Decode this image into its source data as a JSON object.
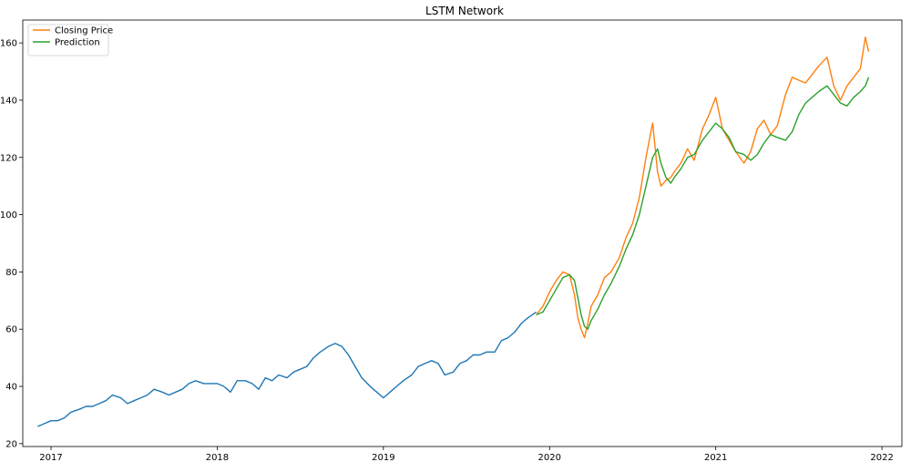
{
  "chart_data": {
    "type": "line",
    "title": "LSTM Network",
    "xlabel": "",
    "ylabel": "",
    "xlim": [
      2016.83,
      2022.12
    ],
    "ylim": [
      19,
      168
    ],
    "x_ticks": [
      2017,
      2018,
      2019,
      2020,
      2021,
      2022
    ],
    "y_ticks": [
      20,
      40,
      60,
      80,
      100,
      120,
      140,
      160
    ],
    "grid": false,
    "legend": {
      "placement": "top-left"
    },
    "series": [
      {
        "name": "",
        "color": "#1f77b4",
        "x": [
          2016.92,
          2016.96,
          2017.0,
          2017.04,
          2017.08,
          2017.12,
          2017.17,
          2017.21,
          2017.25,
          2017.29,
          2017.33,
          2017.37,
          2017.42,
          2017.46,
          2017.5,
          2017.54,
          2017.58,
          2017.62,
          2017.67,
          2017.71,
          2017.75,
          2017.79,
          2017.83,
          2017.87,
          2017.92,
          2017.96,
          2018.0,
          2018.04,
          2018.08,
          2018.1,
          2018.12,
          2018.17,
          2018.21,
          2018.25,
          2018.29,
          2018.33,
          2018.37,
          2018.42,
          2018.46,
          2018.5,
          2018.54,
          2018.58,
          2018.62,
          2018.67,
          2018.71,
          2018.75,
          2018.79,
          2018.83,
          2018.87,
          2018.92,
          2018.96,
          2019.0,
          2019.02,
          2019.04,
          2019.08,
          2019.12,
          2019.17,
          2019.21,
          2019.25,
          2019.29,
          2019.33,
          2019.37,
          2019.42,
          2019.46,
          2019.5,
          2019.54,
          2019.58,
          2019.62,
          2019.67,
          2019.71,
          2019.75,
          2019.79,
          2019.83,
          2019.87,
          2019.92
        ],
        "y": [
          26,
          27,
          28,
          28,
          29,
          31,
          32,
          33,
          33,
          34,
          35,
          37,
          36,
          34,
          35,
          36,
          37,
          39,
          38,
          37,
          38,
          39,
          41,
          42,
          41,
          41,
          41,
          40,
          38,
          40,
          42,
          42,
          41,
          39,
          43,
          42,
          44,
          43,
          45,
          46,
          47,
          50,
          52,
          54,
          55,
          54,
          51,
          47,
          43,
          40,
          38,
          36,
          37,
          38,
          40,
          42,
          44,
          47,
          48,
          49,
          48,
          44,
          45,
          48,
          49,
          51,
          51,
          52,
          52,
          56,
          57,
          59,
          62,
          64,
          66
        ]
      },
      {
        "name": "Closing Price",
        "color": "#ff7f0e",
        "x": [
          2019.92,
          2019.96,
          2020.0,
          2020.04,
          2020.08,
          2020.12,
          2020.15,
          2020.17,
          2020.19,
          2020.21,
          2020.23,
          2020.25,
          2020.29,
          2020.33,
          2020.37,
          2020.42,
          2020.46,
          2020.5,
          2020.54,
          2020.58,
          2020.62,
          2020.65,
          2020.67,
          2020.7,
          2020.73,
          2020.75,
          2020.79,
          2020.83,
          2020.87,
          2020.92,
          2020.96,
          2021.0,
          2021.04,
          2021.08,
          2021.12,
          2021.17,
          2021.21,
          2021.25,
          2021.29,
          2021.33,
          2021.37,
          2021.42,
          2021.46,
          2021.5,
          2021.54,
          2021.58,
          2021.62,
          2021.67,
          2021.71,
          2021.75,
          2021.79,
          2021.83,
          2021.87,
          2021.9,
          2021.92
        ],
        "y": [
          65,
          68,
          73,
          77,
          80,
          79,
          72,
          64,
          60,
          57,
          62,
          68,
          72,
          78,
          80,
          85,
          92,
          97,
          106,
          120,
          132,
          115,
          110,
          112,
          113,
          115,
          118,
          123,
          119,
          130,
          135,
          141,
          130,
          126,
          122,
          118,
          122,
          130,
          133,
          128,
          131,
          142,
          148,
          147,
          146,
          149,
          152,
          155,
          145,
          140,
          145,
          148,
          151,
          162,
          157
        ]
      },
      {
        "name": "Prediction",
        "color": "#2ca02c",
        "x": [
          2019.92,
          2019.96,
          2020.0,
          2020.04,
          2020.08,
          2020.12,
          2020.15,
          2020.17,
          2020.19,
          2020.21,
          2020.23,
          2020.25,
          2020.29,
          2020.33,
          2020.37,
          2020.42,
          2020.46,
          2020.5,
          2020.54,
          2020.58,
          2020.62,
          2020.65,
          2020.67,
          2020.7,
          2020.73,
          2020.75,
          2020.79,
          2020.83,
          2020.87,
          2020.92,
          2020.96,
          2021.0,
          2021.04,
          2021.08,
          2021.12,
          2021.17,
          2021.21,
          2021.25,
          2021.29,
          2021.33,
          2021.37,
          2021.42,
          2021.46,
          2021.5,
          2021.54,
          2021.58,
          2021.62,
          2021.67,
          2021.71,
          2021.75,
          2021.79,
          2021.83,
          2021.87,
          2021.9,
          2021.92
        ],
        "y": [
          65,
          66,
          70,
          74,
          78,
          79,
          77,
          71,
          65,
          61,
          60,
          63,
          67,
          72,
          76,
          82,
          88,
          93,
          100,
          110,
          120,
          123,
          118,
          113,
          111,
          113,
          116,
          120,
          121,
          126,
          129,
          132,
          130,
          127,
          122,
          121,
          119,
          121,
          125,
          128,
          127,
          126,
          129,
          135,
          139,
          141,
          143,
          145,
          142,
          139,
          138,
          141,
          143,
          145,
          148
        ]
      }
    ]
  }
}
